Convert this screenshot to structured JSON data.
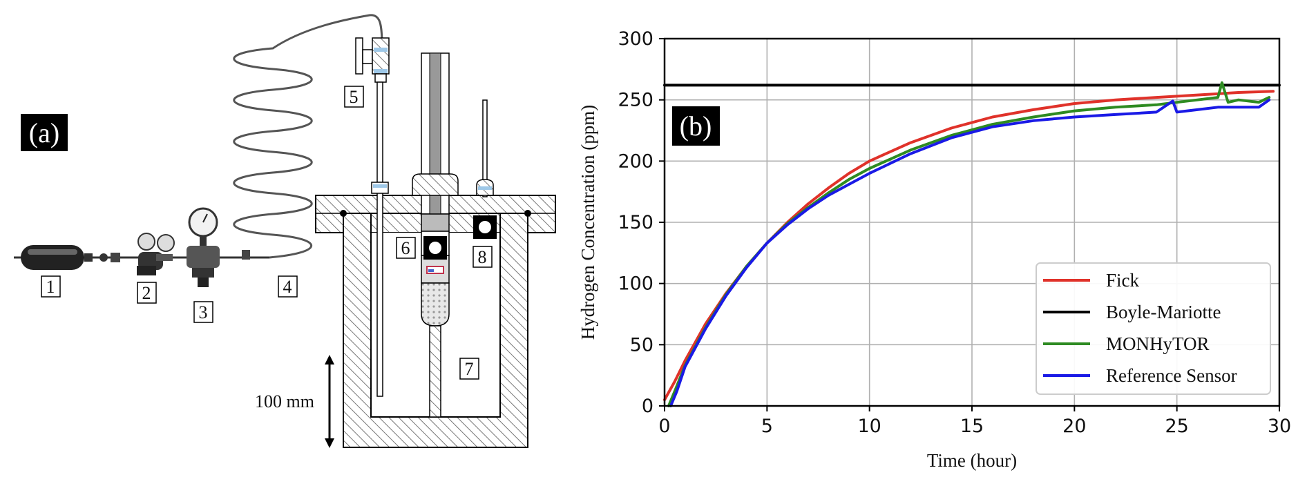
{
  "panel_a": {
    "tag": "(a)",
    "scale_label": "100 mm",
    "component_labels": [
      "1",
      "2",
      "3",
      "4",
      "5",
      "6",
      "7",
      "8"
    ]
  },
  "panel_b": {
    "tag": "(b)"
  },
  "chart_data": {
    "type": "line",
    "title": "",
    "xlabel": "Time (hour)",
    "ylabel": "Hydrogen Concentration (ppm)",
    "xlim": [
      0,
      30
    ],
    "ylim": [
      0,
      300
    ],
    "xticks": [
      0,
      5,
      10,
      15,
      20,
      25,
      30
    ],
    "yticks": [
      0,
      50,
      100,
      150,
      200,
      250,
      300
    ],
    "grid": true,
    "legend_position": "bottom-right",
    "series": [
      {
        "name": "Fick",
        "color": "#e0322a",
        "x": [
          0,
          0.5,
          1,
          2,
          3,
          4,
          5,
          6,
          7,
          8,
          9,
          10,
          12,
          14,
          16,
          18,
          20,
          22,
          24,
          26,
          28,
          29.7
        ],
        "y": [
          5,
          20,
          37,
          67,
          92,
          114,
          133,
          150,
          165,
          178,
          190,
          200,
          215,
          227,
          236,
          242,
          247,
          250,
          252,
          254,
          256,
          257
        ]
      },
      {
        "name": "Boyle-Mariotte",
        "color": "#000000",
        "x": [
          0,
          30
        ],
        "y": [
          262,
          262
        ]
      },
      {
        "name": "MONHyTOR",
        "color": "#2e8b22",
        "x": [
          0.2,
          0.5,
          1,
          2,
          3,
          4,
          5,
          6,
          7,
          8,
          9,
          10,
          12,
          14,
          16,
          18,
          20,
          22,
          24,
          25,
          26,
          27,
          27.2,
          27.5,
          28,
          29,
          29.5
        ],
        "y": [
          0,
          12,
          33,
          64,
          91,
          114,
          133,
          149,
          162,
          174,
          185,
          194,
          209,
          221,
          230,
          236,
          241,
          244,
          246,
          248,
          250,
          252,
          264,
          248,
          250,
          248,
          252
        ]
      },
      {
        "name": "Reference Sensor",
        "color": "#1a1ae6",
        "x": [
          0.3,
          0.6,
          1,
          2,
          3,
          4,
          5,
          6,
          7,
          8,
          9,
          10,
          12,
          14,
          16,
          18,
          20,
          22,
          24,
          24.8,
          25,
          26,
          27,
          28,
          29,
          29.5
        ],
        "y": [
          0,
          12,
          32,
          63,
          90,
          113,
          133,
          148,
          161,
          172,
          181,
          190,
          206,
          219,
          228,
          233,
          236,
          238,
          240,
          249,
          240,
          242,
          244,
          244,
          244,
          250
        ]
      }
    ]
  }
}
